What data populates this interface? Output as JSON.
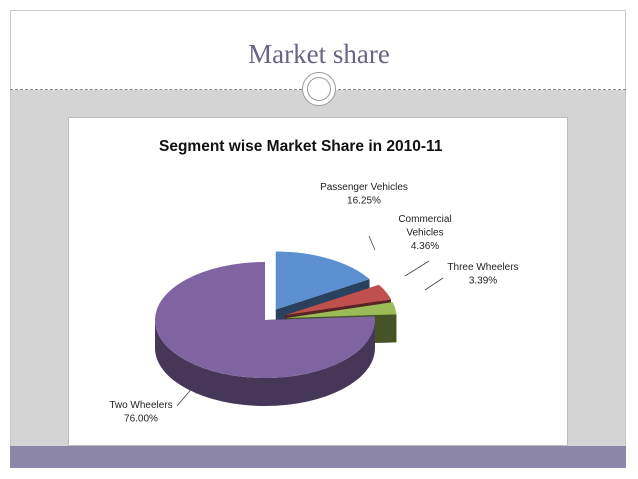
{
  "slide": {
    "title": "Market share"
  },
  "chart_data": {
    "type": "pie",
    "title": "Segment wise Market Share in 2010-11",
    "labels": [
      "Passenger Vehicles",
      "Commercial Vehicles",
      "Three Wheelers",
      "Two Wheelers"
    ],
    "values": [
      16.25,
      4.36,
      3.39,
      76.0
    ],
    "value_labels": [
      "16.25%",
      "4.36%",
      "3.39%",
      "76.00%"
    ],
    "colors": [
      "#5b8fd0",
      "#c0504d",
      "#9bbb59",
      "#8064a2"
    ],
    "three_d": true,
    "exploded_slices": [
      "Passenger Vehicles",
      "Commercial Vehicles",
      "Three Wheelers"
    ]
  }
}
